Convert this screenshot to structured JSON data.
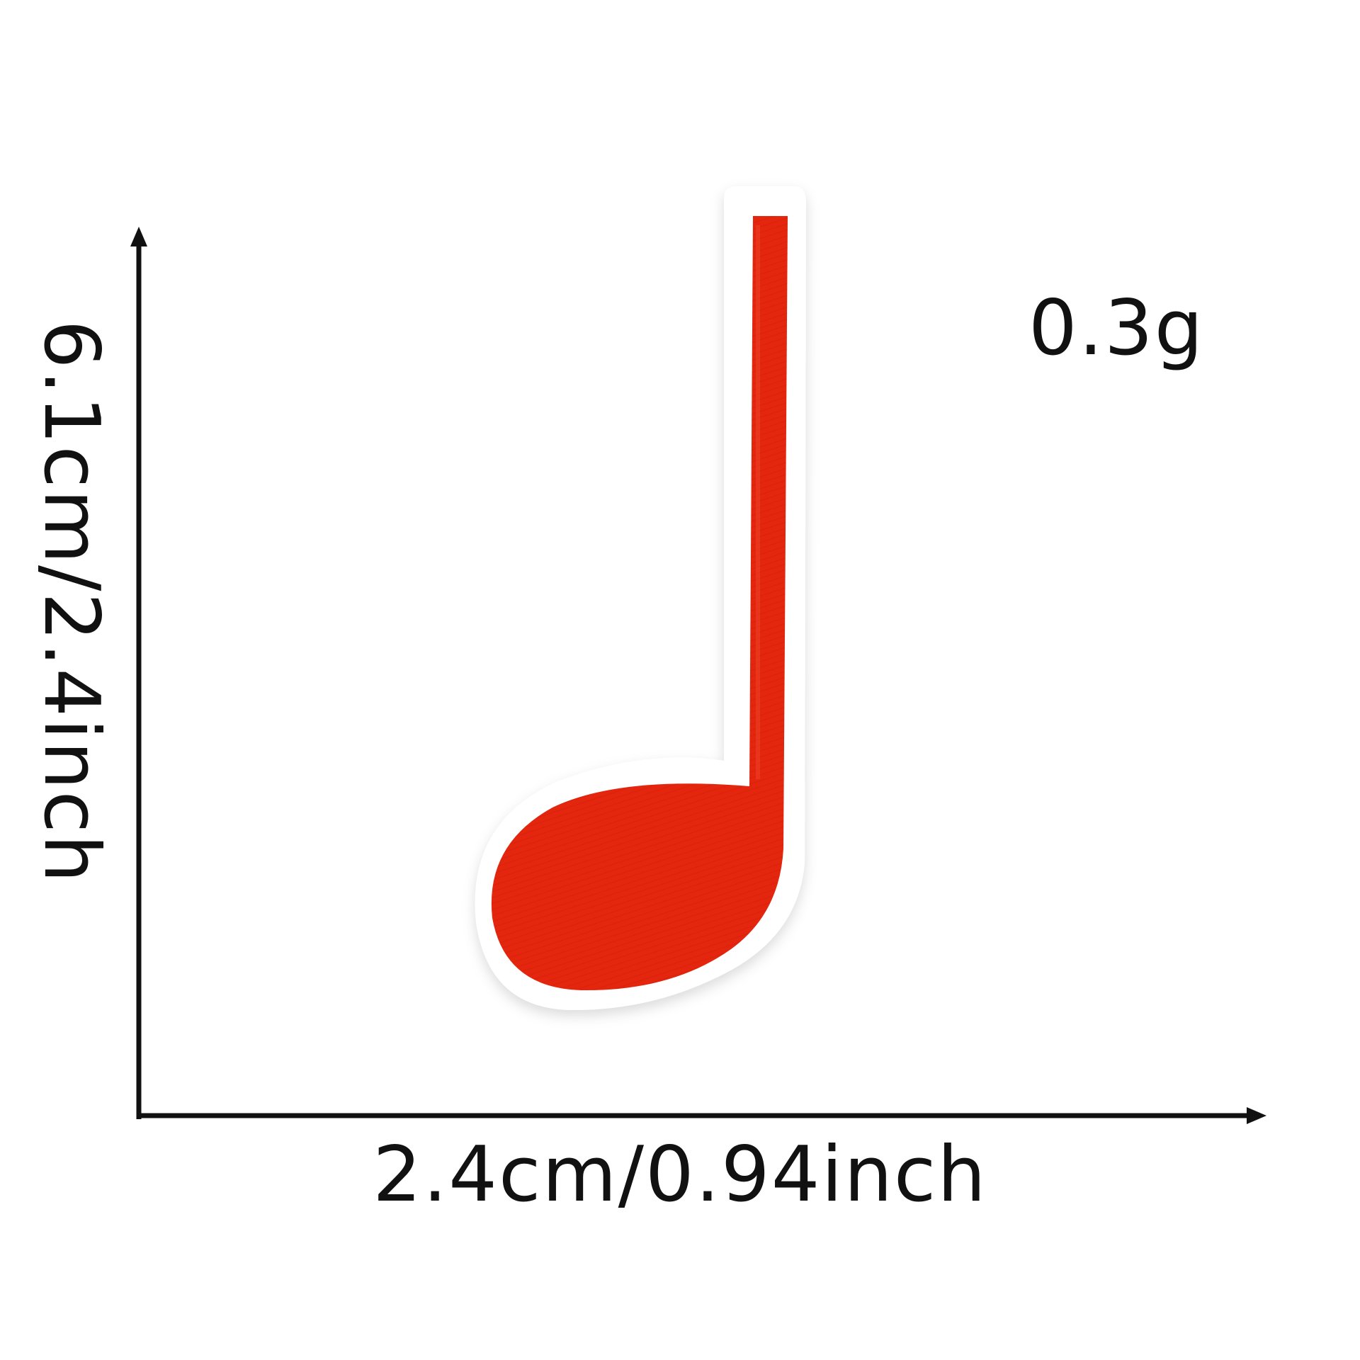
{
  "dimensions": {
    "height_label": "6.1cm/2.4inch",
    "width_label": "2.4cm/0.94inch",
    "weight_label": "0.3g"
  },
  "product": {
    "icon": "music-note-patch",
    "colors": {
      "embroidery": "#e3260f",
      "backing": "#ffffff",
      "ink": "#111111"
    }
  }
}
